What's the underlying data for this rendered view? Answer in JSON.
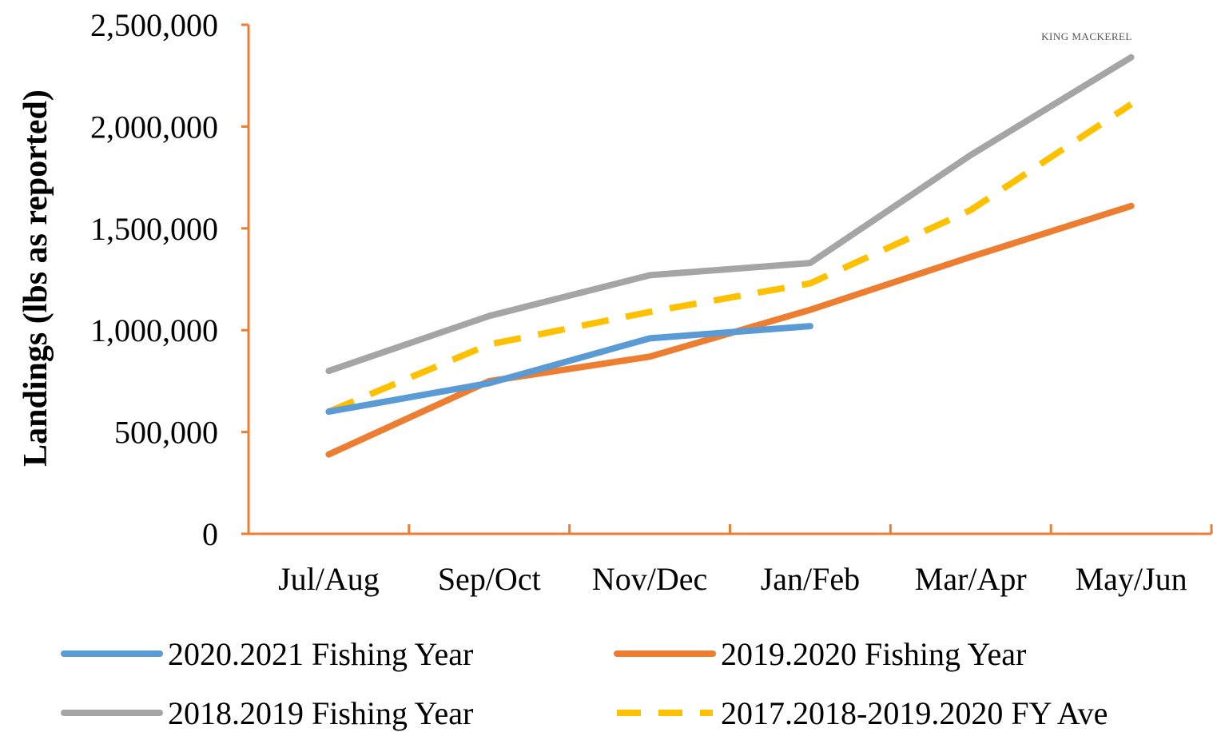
{
  "colors": {
    "axis": "#ED7D31",
    "series_2020_2021": "#5B9BD5",
    "series_2019_2020": "#ED7D31",
    "series_2018_2019": "#A5A5A5",
    "series_average": "#FFC000"
  },
  "chart_data": {
    "type": "line",
    "title": "",
    "annotation": "KING MACKEREL",
    "xlabel": "",
    "ylabel": "Landings (lbs as reported)",
    "ylim": [
      0,
      2500000
    ],
    "yticks": [
      0,
      500000,
      1000000,
      1500000,
      2000000,
      2500000
    ],
    "ytick_labels": [
      "0",
      "500,000",
      "1,000,000",
      "1,500,000",
      "2,000,000",
      "2,500,000"
    ],
    "categories": [
      "Jul/Aug",
      "Sep/Oct",
      "Nov/Dec",
      "Jan/Feb",
      "Mar/Apr",
      "May/Jun"
    ],
    "grid": false,
    "legend_position": "bottom",
    "series": [
      {
        "name": "2020.2021 Fishing Year",
        "style": "solid",
        "color": "#5B9BD5",
        "values": [
          600000,
          740000,
          960000,
          1020000,
          null,
          null
        ]
      },
      {
        "name": "2019.2020 Fishing Year",
        "style": "solid",
        "color": "#ED7D31",
        "values": [
          390000,
          750000,
          870000,
          1100000,
          1360000,
          1610000
        ]
      },
      {
        "name": "2018.2019 Fishing Year",
        "style": "solid",
        "color": "#A5A5A5",
        "values": [
          800000,
          1070000,
          1270000,
          1330000,
          1860000,
          2340000
        ]
      },
      {
        "name": "2017.2018-2019.2020 FY Ave",
        "style": "dashed",
        "color": "#FFC000",
        "values": [
          600000,
          930000,
          1090000,
          1230000,
          1590000,
          2110000
        ]
      }
    ]
  }
}
